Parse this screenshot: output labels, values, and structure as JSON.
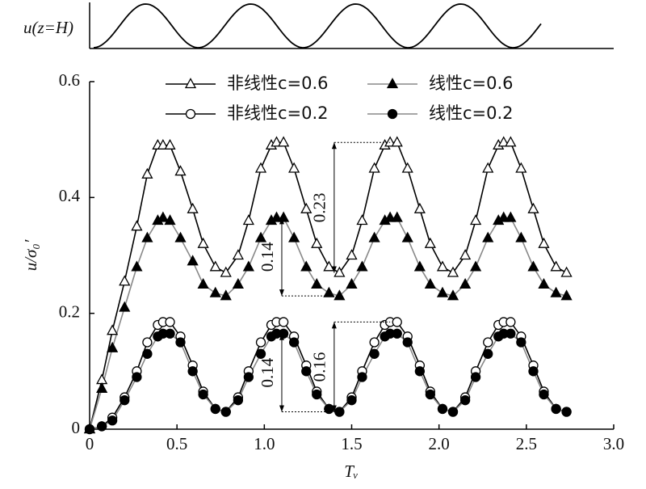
{
  "chart_data": {
    "type": "line",
    "top_label": "u(z=H)",
    "x_label": "Tᵥ",
    "y_label": "u/σ₀′",
    "x": [
      0,
      0.07,
      0.13,
      0.2,
      0.27,
      0.33,
      0.39,
      0.42,
      0.46,
      0.52,
      0.59,
      0.65,
      0.72,
      0.78,
      0.85,
      0.91,
      0.98,
      1.04,
      1.07,
      1.11,
      1.17,
      1.24,
      1.3,
      1.37,
      1.43,
      1.5,
      1.56,
      1.63,
      1.69,
      1.72,
      1.76,
      1.82,
      1.89,
      1.95,
      2.02,
      2.08,
      2.15,
      2.21,
      2.28,
      2.34,
      2.37,
      2.41,
      2.47,
      2.54,
      2.6,
      2.67,
      2.73
    ],
    "series": [
      {
        "name": "非线性c=0.6",
        "color": "#000000",
        "marker": "triangle",
        "filled": false,
        "values": [
          0,
          0.085,
          0.17,
          0.255,
          0.35,
          0.44,
          0.49,
          0.49,
          0.49,
          0.445,
          0.38,
          0.32,
          0.28,
          0.27,
          0.3,
          0.36,
          0.45,
          0.49,
          0.495,
          0.495,
          0.45,
          0.38,
          0.32,
          0.28,
          0.27,
          0.3,
          0.36,
          0.45,
          0.49,
          0.495,
          0.495,
          0.45,
          0.38,
          0.32,
          0.28,
          0.27,
          0.3,
          0.36,
          0.45,
          0.49,
          0.495,
          0.495,
          0.45,
          0.38,
          0.32,
          0.28,
          0.27
        ]
      },
      {
        "name": "线性c=0.6",
        "color": "#888888",
        "marker": "triangle",
        "filled": true,
        "values": [
          0,
          0.07,
          0.14,
          0.21,
          0.28,
          0.33,
          0.36,
          0.365,
          0.36,
          0.33,
          0.29,
          0.25,
          0.235,
          0.23,
          0.25,
          0.28,
          0.33,
          0.36,
          0.365,
          0.365,
          0.33,
          0.28,
          0.25,
          0.235,
          0.23,
          0.25,
          0.28,
          0.33,
          0.36,
          0.365,
          0.365,
          0.33,
          0.28,
          0.25,
          0.235,
          0.23,
          0.25,
          0.28,
          0.33,
          0.36,
          0.365,
          0.365,
          0.33,
          0.28,
          0.25,
          0.235,
          0.23
        ]
      },
      {
        "name": "非线性c=0.2",
        "color": "#000000",
        "marker": "circle",
        "filled": false,
        "values": [
          0,
          0.005,
          0.02,
          0.055,
          0.1,
          0.15,
          0.18,
          0.185,
          0.185,
          0.16,
          0.11,
          0.065,
          0.035,
          0.03,
          0.055,
          0.1,
          0.15,
          0.18,
          0.185,
          0.185,
          0.16,
          0.11,
          0.065,
          0.035,
          0.03,
          0.055,
          0.1,
          0.15,
          0.18,
          0.185,
          0.185,
          0.16,
          0.11,
          0.065,
          0.035,
          0.03,
          0.055,
          0.1,
          0.15,
          0.18,
          0.185,
          0.185,
          0.16,
          0.11,
          0.065,
          0.035,
          0.03
        ]
      },
      {
        "name": "线性c=0.2",
        "color": "#888888",
        "marker": "circle",
        "filled": true,
        "values": [
          0,
          0.005,
          0.015,
          0.05,
          0.09,
          0.13,
          0.16,
          0.165,
          0.165,
          0.15,
          0.1,
          0.06,
          0.035,
          0.03,
          0.05,
          0.09,
          0.13,
          0.16,
          0.165,
          0.165,
          0.15,
          0.1,
          0.06,
          0.035,
          0.03,
          0.05,
          0.09,
          0.13,
          0.16,
          0.165,
          0.165,
          0.15,
          0.1,
          0.06,
          0.035,
          0.03,
          0.05,
          0.09,
          0.13,
          0.16,
          0.165,
          0.165,
          0.15,
          0.1,
          0.06,
          0.035,
          0.03
        ]
      }
    ],
    "annotations": [
      {
        "text": "0.23",
        "x": 1.4,
        "from": 0.27,
        "to": 0.495,
        "guide_y": 0.495,
        "guide_to": 1.72
      },
      {
        "text": "0.14",
        "x": 1.1,
        "from": 0.23,
        "to": 0.365,
        "guide_y": 0.23,
        "guide_to": 1.4
      },
      {
        "text": "0.16",
        "x": 1.4,
        "from": 0.03,
        "to": 0.185,
        "guide_y": 0.185,
        "guide_to": 1.72
      },
      {
        "text": "0.14",
        "x": 1.1,
        "from": 0.03,
        "to": 0.165,
        "guide_y": 0.03,
        "guide_to": 1.4
      }
    ],
    "xlim": [
      0,
      3
    ],
    "ylim": [
      0,
      0.6
    ],
    "xticks": [
      0,
      0.5,
      {
        "value": 1,
        "label": "1.0"
      },
      1.5,
      {
        "value": 2,
        "label": "2.0"
      },
      2.5,
      {
        "value": 3,
        "label": "3.0"
      }
    ],
    "yticks": [
      0,
      0.2,
      0.4,
      0.6
    ],
    "legend": "top"
  }
}
